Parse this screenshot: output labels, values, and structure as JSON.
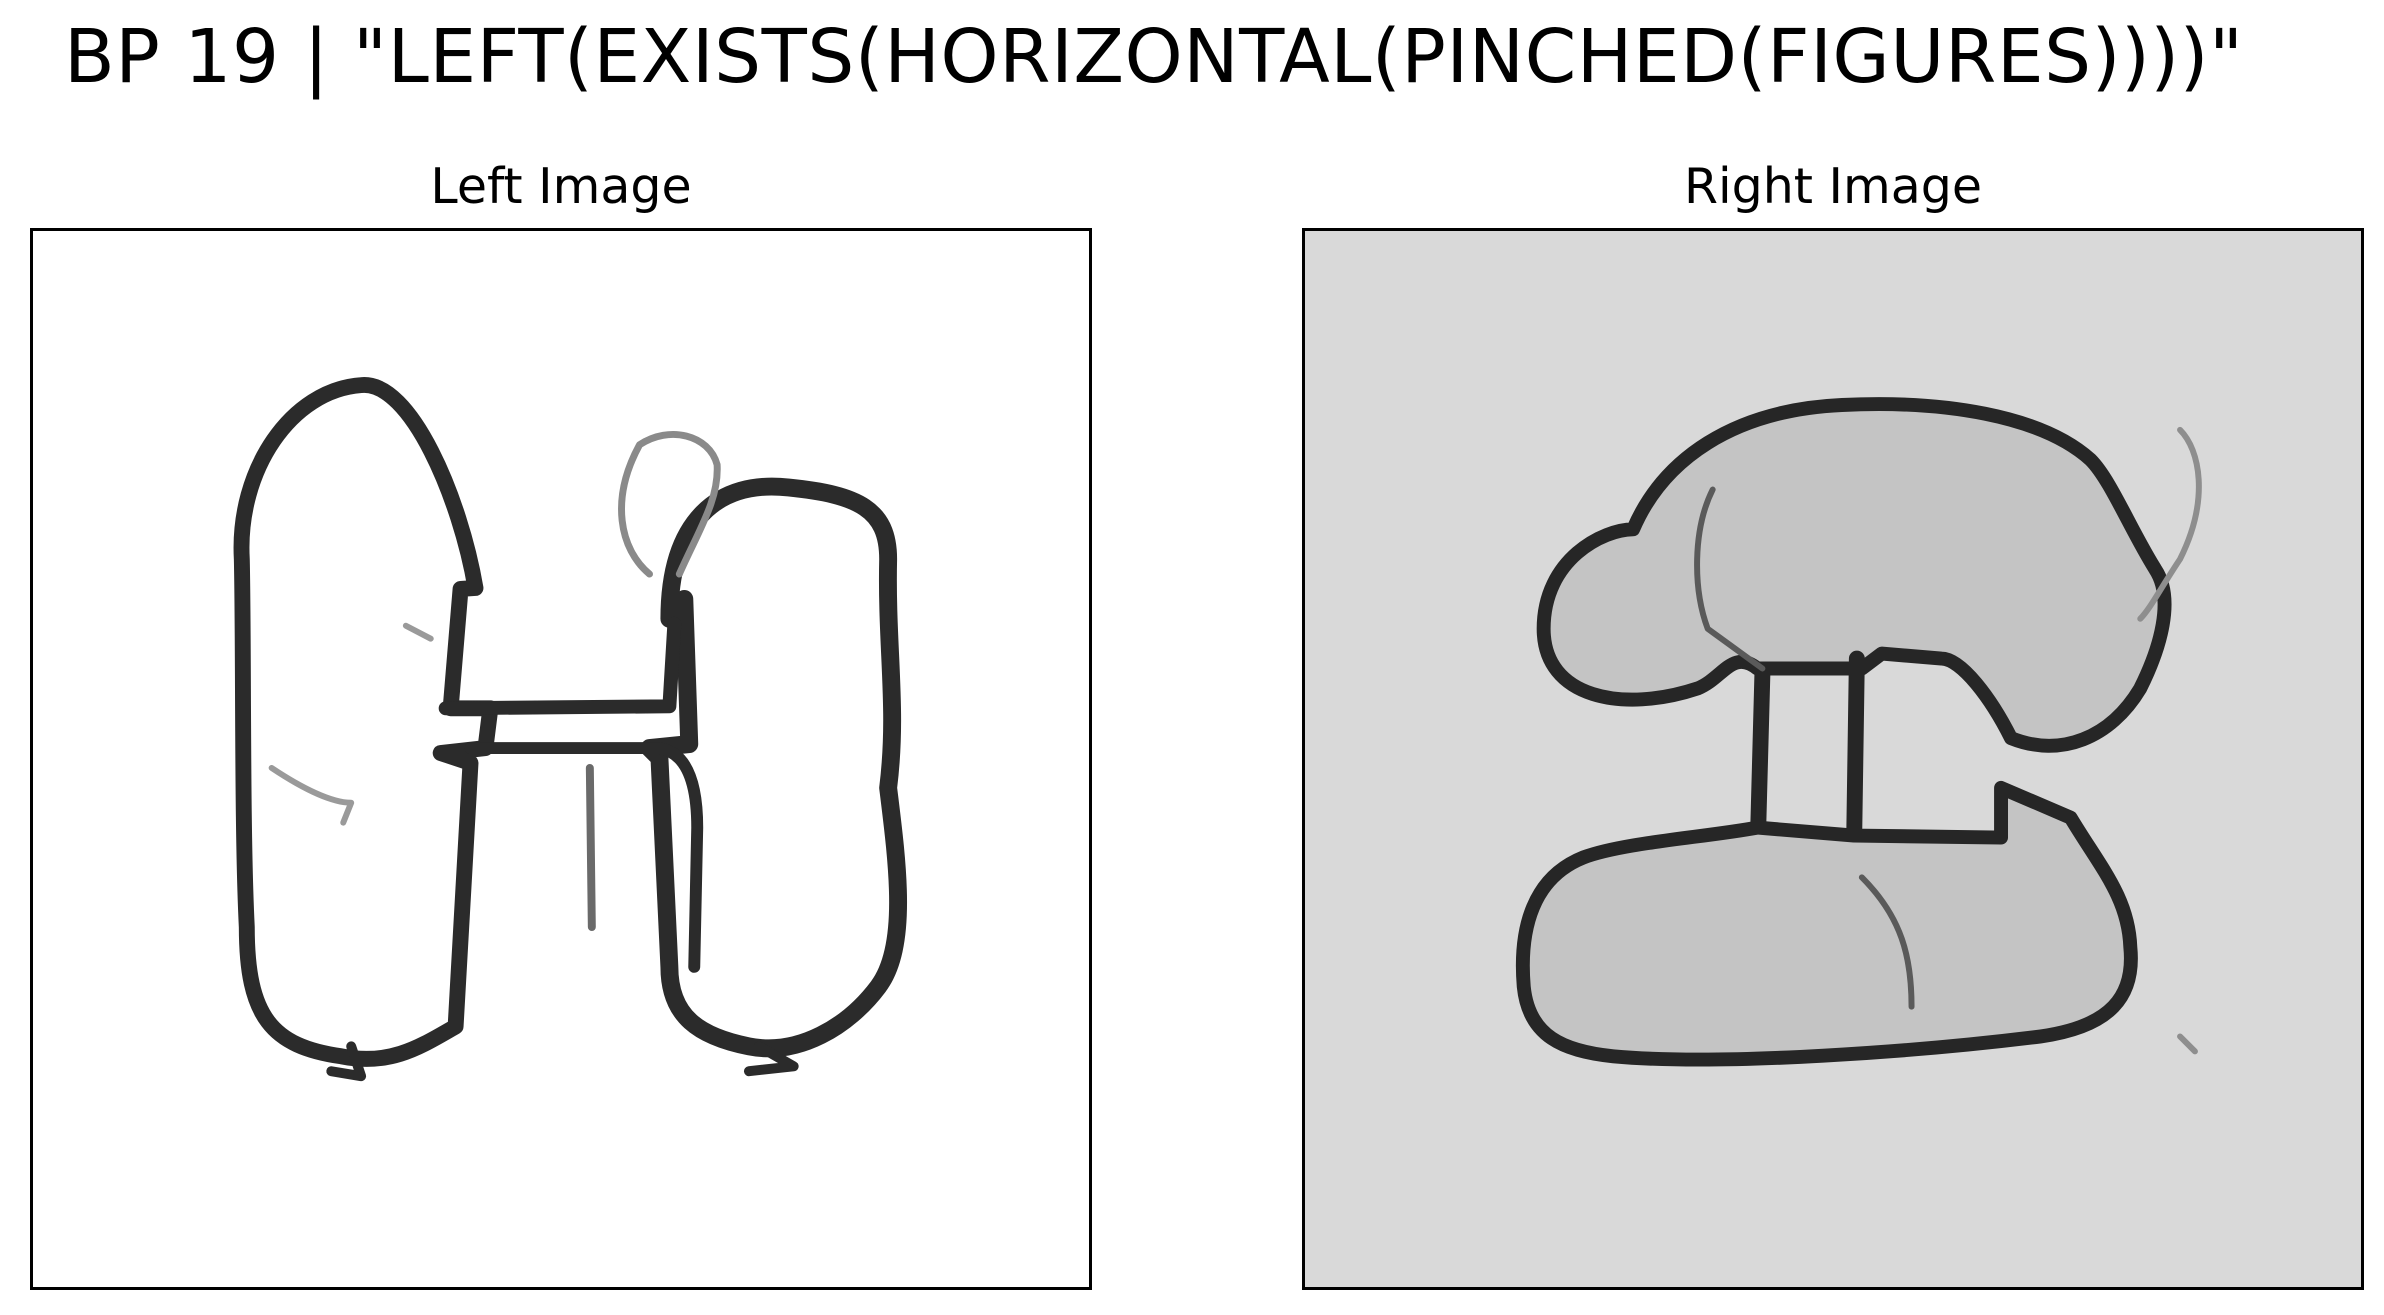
{
  "title": "BP 19 | \"LEFT(EXISTS(HORIZONTAL(PINCHED(FIGURES))))\"",
  "panels": [
    {
      "title": "Left Image",
      "background": "#ffffff",
      "stroke": "#2b2b2b",
      "fill": "none"
    },
    {
      "title": "Right Image",
      "background": "#d9d9d9",
      "stroke": "#262626",
      "fill": "#c4c4c4"
    }
  ]
}
